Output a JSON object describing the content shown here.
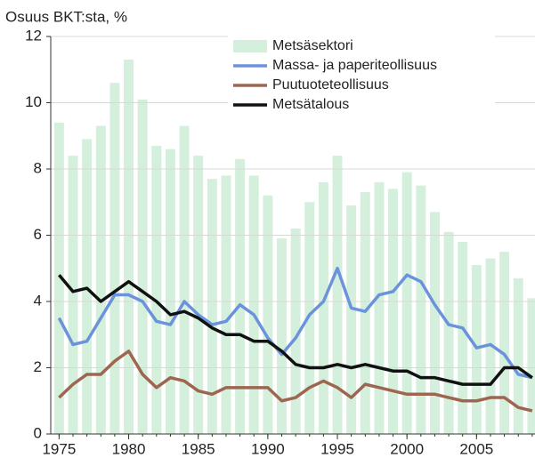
{
  "chart_data": {
    "type": "combo",
    "ylabel": "Osuus BKT:sta, %",
    "x": [
      1975,
      1976,
      1977,
      1978,
      1979,
      1980,
      1981,
      1982,
      1983,
      1984,
      1985,
      1986,
      1987,
      1988,
      1989,
      1990,
      1991,
      1992,
      1993,
      1994,
      1995,
      1996,
      1997,
      1998,
      1999,
      2000,
      2001,
      2002,
      2003,
      2004,
      2005,
      2006,
      2007,
      2008,
      2009
    ],
    "xlim": [
      1974.4,
      2009.2
    ],
    "xticks": [
      1975,
      1980,
      1985,
      1990,
      1995,
      2000,
      2005
    ],
    "ylim": [
      0,
      12
    ],
    "yticks": [
      0,
      2,
      4,
      6,
      8,
      10,
      12
    ],
    "grid": true,
    "series": [
      {
        "name": "Metsäsektori",
        "type": "bar",
        "color": "#d4efdc",
        "values": [
          9.4,
          8.4,
          8.9,
          9.3,
          10.6,
          11.3,
          10.1,
          8.7,
          8.6,
          9.3,
          8.4,
          7.7,
          7.8,
          8.3,
          7.8,
          7.2,
          5.9,
          6.2,
          7.0,
          7.6,
          8.4,
          6.9,
          7.3,
          7.6,
          7.4,
          7.9,
          7.5,
          6.7,
          6.1,
          5.8,
          5.1,
          5.3,
          5.5,
          4.7,
          4.1
        ]
      },
      {
        "name": "Massa- ja paperiteollisuus",
        "type": "line",
        "color": "#6b93dc",
        "values": [
          3.5,
          2.7,
          2.8,
          3.5,
          4.2,
          4.2,
          4.0,
          3.4,
          3.3,
          4.0,
          3.6,
          3.3,
          3.4,
          3.9,
          3.6,
          2.9,
          2.4,
          2.9,
          3.6,
          4.0,
          5.0,
          3.8,
          3.7,
          4.2,
          4.3,
          4.8,
          4.6,
          3.9,
          3.3,
          3.2,
          2.6,
          2.7,
          2.4,
          1.8,
          1.7
        ]
      },
      {
        "name": "Puutuoteteollisuus",
        "type": "line",
        "color": "#9e6650",
        "values": [
          1.1,
          1.5,
          1.8,
          1.8,
          2.2,
          2.5,
          1.8,
          1.4,
          1.7,
          1.6,
          1.3,
          1.2,
          1.4,
          1.4,
          1.4,
          1.4,
          1.0,
          1.1,
          1.4,
          1.6,
          1.4,
          1.1,
          1.5,
          1.4,
          1.3,
          1.2,
          1.2,
          1.2,
          1.1,
          1.0,
          1.0,
          1.1,
          1.1,
          0.8,
          0.7
        ]
      },
      {
        "name": "Metsätalous",
        "type": "line",
        "color": "#111111",
        "values": [
          4.8,
          4.3,
          4.4,
          4.0,
          4.3,
          4.6,
          4.3,
          4.0,
          3.6,
          3.7,
          3.5,
          3.2,
          3.0,
          3.0,
          2.8,
          2.8,
          2.5,
          2.1,
          2.0,
          2.0,
          2.1,
          2.0,
          2.1,
          2.0,
          1.9,
          1.9,
          1.7,
          1.7,
          1.6,
          1.5,
          1.5,
          1.5,
          2.0,
          2.0,
          1.7
        ]
      }
    ]
  }
}
